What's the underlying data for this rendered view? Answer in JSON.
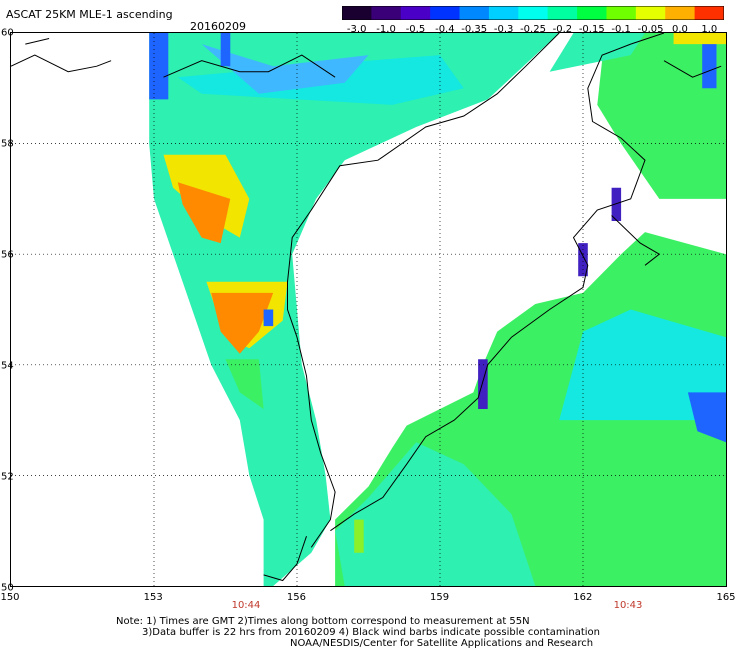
{
  "header": {
    "title": "ASCAT 25KM MLE-1 ascending",
    "date": "20160209"
  },
  "colorbar": {
    "labels": [
      "-3.0",
      "-1.0",
      "-0.5",
      "-0.4",
      "-0.35",
      "-0.3",
      "-0.25",
      "-0.2",
      "-0.15",
      "-0.1",
      "-0.05",
      "0.0",
      "1.0"
    ],
    "colors": [
      "#1a0030",
      "#3a0078",
      "#4b00c8",
      "#0033ff",
      "#0088ff",
      "#00d0ff",
      "#00ffee",
      "#00ffa0",
      "#00ff40",
      "#70ff00",
      "#e6ff00",
      "#ffb000",
      "#ff3000"
    ]
  },
  "map": {
    "lat_labels": [
      "60",
      "58",
      "56",
      "54",
      "52",
      "50"
    ],
    "lon_labels": [
      "150",
      "153",
      "156",
      "159",
      "162",
      "165"
    ],
    "time_labels": [
      "10:44",
      "10:43"
    ],
    "colors": {
      "land": "#ffffff",
      "blue": "#1e64ff",
      "deep_blue": "#4020c0",
      "cyan": "#14e8e0",
      "aqua": "#2ef0b0",
      "green": "#3cf064",
      "lime": "#8cf028",
      "yellow": "#f2e600",
      "orange": "#ff8a00",
      "light_blue": "#40b8ff"
    }
  },
  "notes": {
    "line1": "Note: 1) Times are GMT 2)Times along bottom correspond to measurement at 55N",
    "line2": "3)Data buffer is 22 hrs from 20160209 4) Black wind barbs indicate possible contamination",
    "line3": "NOAA/NESDIS/Center for Satellite Applications and Research"
  }
}
